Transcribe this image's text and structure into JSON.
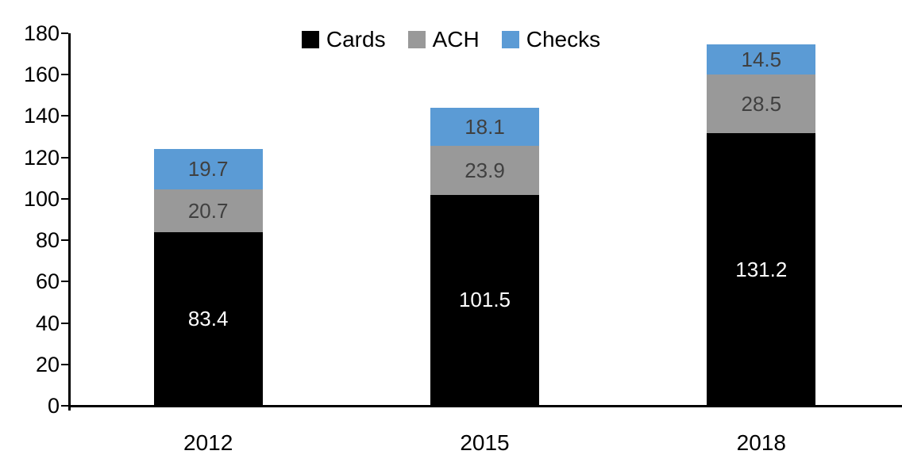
{
  "chart_data": {
    "type": "bar",
    "stacked": true,
    "title": "",
    "xlabel": "",
    "ylabel": "",
    "grid": false,
    "legend_position": "top-center",
    "categories": [
      "2012",
      "2015",
      "2018"
    ],
    "series": [
      {
        "name": "Cards",
        "color": "#000000",
        "label_color": "#ffffff",
        "values": [
          83.4,
          101.5,
          131.2
        ]
      },
      {
        "name": "ACH",
        "color": "#999999",
        "label_color": "#404040",
        "values": [
          20.7,
          23.9,
          28.5
        ]
      },
      {
        "name": "Checks",
        "color": "#5B9BD5",
        "label_color": "#404040",
        "values": [
          19.7,
          18.1,
          14.5
        ]
      }
    ],
    "ylim": [
      0,
      180
    ],
    "ytick_step": 20,
    "ytick_labels": [
      "0",
      "20",
      "40",
      "60",
      "80",
      "100",
      "120",
      "140",
      "160",
      "180"
    ],
    "axis_color": "#000000"
  }
}
